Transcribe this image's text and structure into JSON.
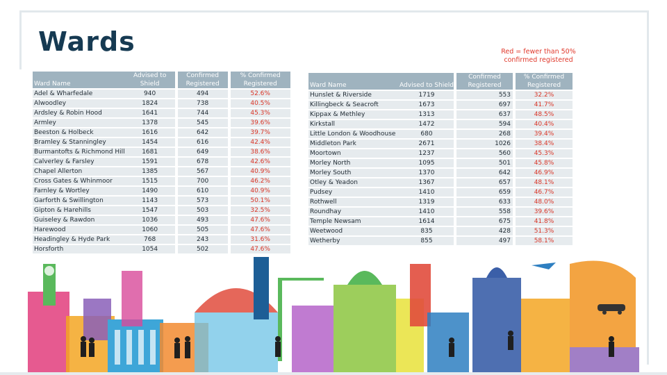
{
  "title": "Wards",
  "legend_note": "Red = fewer than 50% confirmed registered",
  "headers": {
    "ward_name": "Ward Name",
    "advised": "Advised to Shield",
    "confirmed": "Confirmed Registered",
    "percent": "% Confirmed Registered"
  },
  "colors": {
    "title": "#163a52",
    "header_bg": "#9fb3bf",
    "row_bg": "#e6ebee",
    "below_threshold_text": "#d93628"
  },
  "left_rows": [
    {
      "ward": "Adel & Wharfedale",
      "advised": "940",
      "confirmed": "494",
      "percent": "52.6%"
    },
    {
      "ward": "Alwoodley",
      "advised": "1824",
      "confirmed": "738",
      "percent": "40.5%"
    },
    {
      "ward": "Ardsley & Robin Hood",
      "advised": "1641",
      "confirmed": "744",
      "percent": "45.3%"
    },
    {
      "ward": "Armley",
      "advised": "1378",
      "confirmed": "545",
      "percent": "39.6%"
    },
    {
      "ward": "Beeston & Holbeck",
      "advised": "1616",
      "confirmed": "642",
      "percent": "39.7%"
    },
    {
      "ward": "Bramley & Stanningley",
      "advised": "1454",
      "confirmed": "616",
      "percent": "42.4%"
    },
    {
      "ward": "Burmantofts & Richmond Hill",
      "advised": "1681",
      "confirmed": "649",
      "percent": "38.6%"
    },
    {
      "ward": "Calverley & Farsley",
      "advised": "1591",
      "confirmed": "678",
      "percent": "42.6%"
    },
    {
      "ward": "Chapel Allerton",
      "advised": "1385",
      "confirmed": "567",
      "percent": "40.9%"
    },
    {
      "ward": "Cross Gates & Whinmoor",
      "advised": "1515",
      "confirmed": "700",
      "percent": "46.2%"
    },
    {
      "ward": "Farnley & Wortley",
      "advised": "1490",
      "confirmed": "610",
      "percent": "40.9%"
    },
    {
      "ward": "Garforth & Swillington",
      "advised": "1143",
      "confirmed": "573",
      "percent": "50.1%"
    },
    {
      "ward": "Gipton & Harehills",
      "advised": "1547",
      "confirmed": "503",
      "percent": "32.5%"
    },
    {
      "ward": "Guiseley & Rawdon",
      "advised": "1036",
      "confirmed": "493",
      "percent": "47.6%"
    },
    {
      "ward": "Harewood",
      "advised": "1060",
      "confirmed": "505",
      "percent": "47.6%"
    },
    {
      "ward": "Headingley & Hyde Park",
      "advised": "768",
      "confirmed": "243",
      "percent": "31.6%"
    },
    {
      "ward": "Horsforth",
      "advised": "1054",
      "confirmed": "502",
      "percent": "47.6%"
    }
  ],
  "right_rows": [
    {
      "ward": "Hunslet & Riverside",
      "advised": "1719",
      "confirmed": "553",
      "percent": "32.2%"
    },
    {
      "ward": "Killingbeck & Seacroft",
      "advised": "1673",
      "confirmed": "697",
      "percent": "41.7%"
    },
    {
      "ward": "Kippax & Methley",
      "advised": "1313",
      "confirmed": "637",
      "percent": "48.5%"
    },
    {
      "ward": "Kirkstall",
      "advised": "1472",
      "confirmed": "594",
      "percent": "40.4%"
    },
    {
      "ward": "Little London & Woodhouse",
      "advised": "680",
      "confirmed": "268",
      "percent": "39.4%"
    },
    {
      "ward": "Middleton Park",
      "advised": "2671",
      "confirmed": "1026",
      "percent": "38.4%"
    },
    {
      "ward": "Moortown",
      "advised": "1237",
      "confirmed": "560",
      "percent": "45.3%"
    },
    {
      "ward": "Morley North",
      "advised": "1095",
      "confirmed": "501",
      "percent": "45.8%"
    },
    {
      "ward": "Morley South",
      "advised": "1370",
      "confirmed": "642",
      "percent": "46.9%"
    },
    {
      "ward": "Otley & Yeadon",
      "advised": "1367",
      "confirmed": "657",
      "percent": "48.1%"
    },
    {
      "ward": "Pudsey",
      "advised": "1410",
      "confirmed": "659",
      "percent": "46.7%"
    },
    {
      "ward": "Rothwell",
      "advised": "1319",
      "confirmed": "633",
      "percent": "48.0%"
    },
    {
      "ward": "Roundhay",
      "advised": "1410",
      "confirmed": "558",
      "percent": "39.6%"
    },
    {
      "ward": "Temple Newsam",
      "advised": "1614",
      "confirmed": "675",
      "percent": "41.8%"
    },
    {
      "ward": "Weetwood",
      "advised": "835",
      "confirmed": "428",
      "percent": "51.3%"
    },
    {
      "ward": "Wetherby",
      "advised": "855",
      "confirmed": "497",
      "percent": "58.1%"
    }
  ]
}
